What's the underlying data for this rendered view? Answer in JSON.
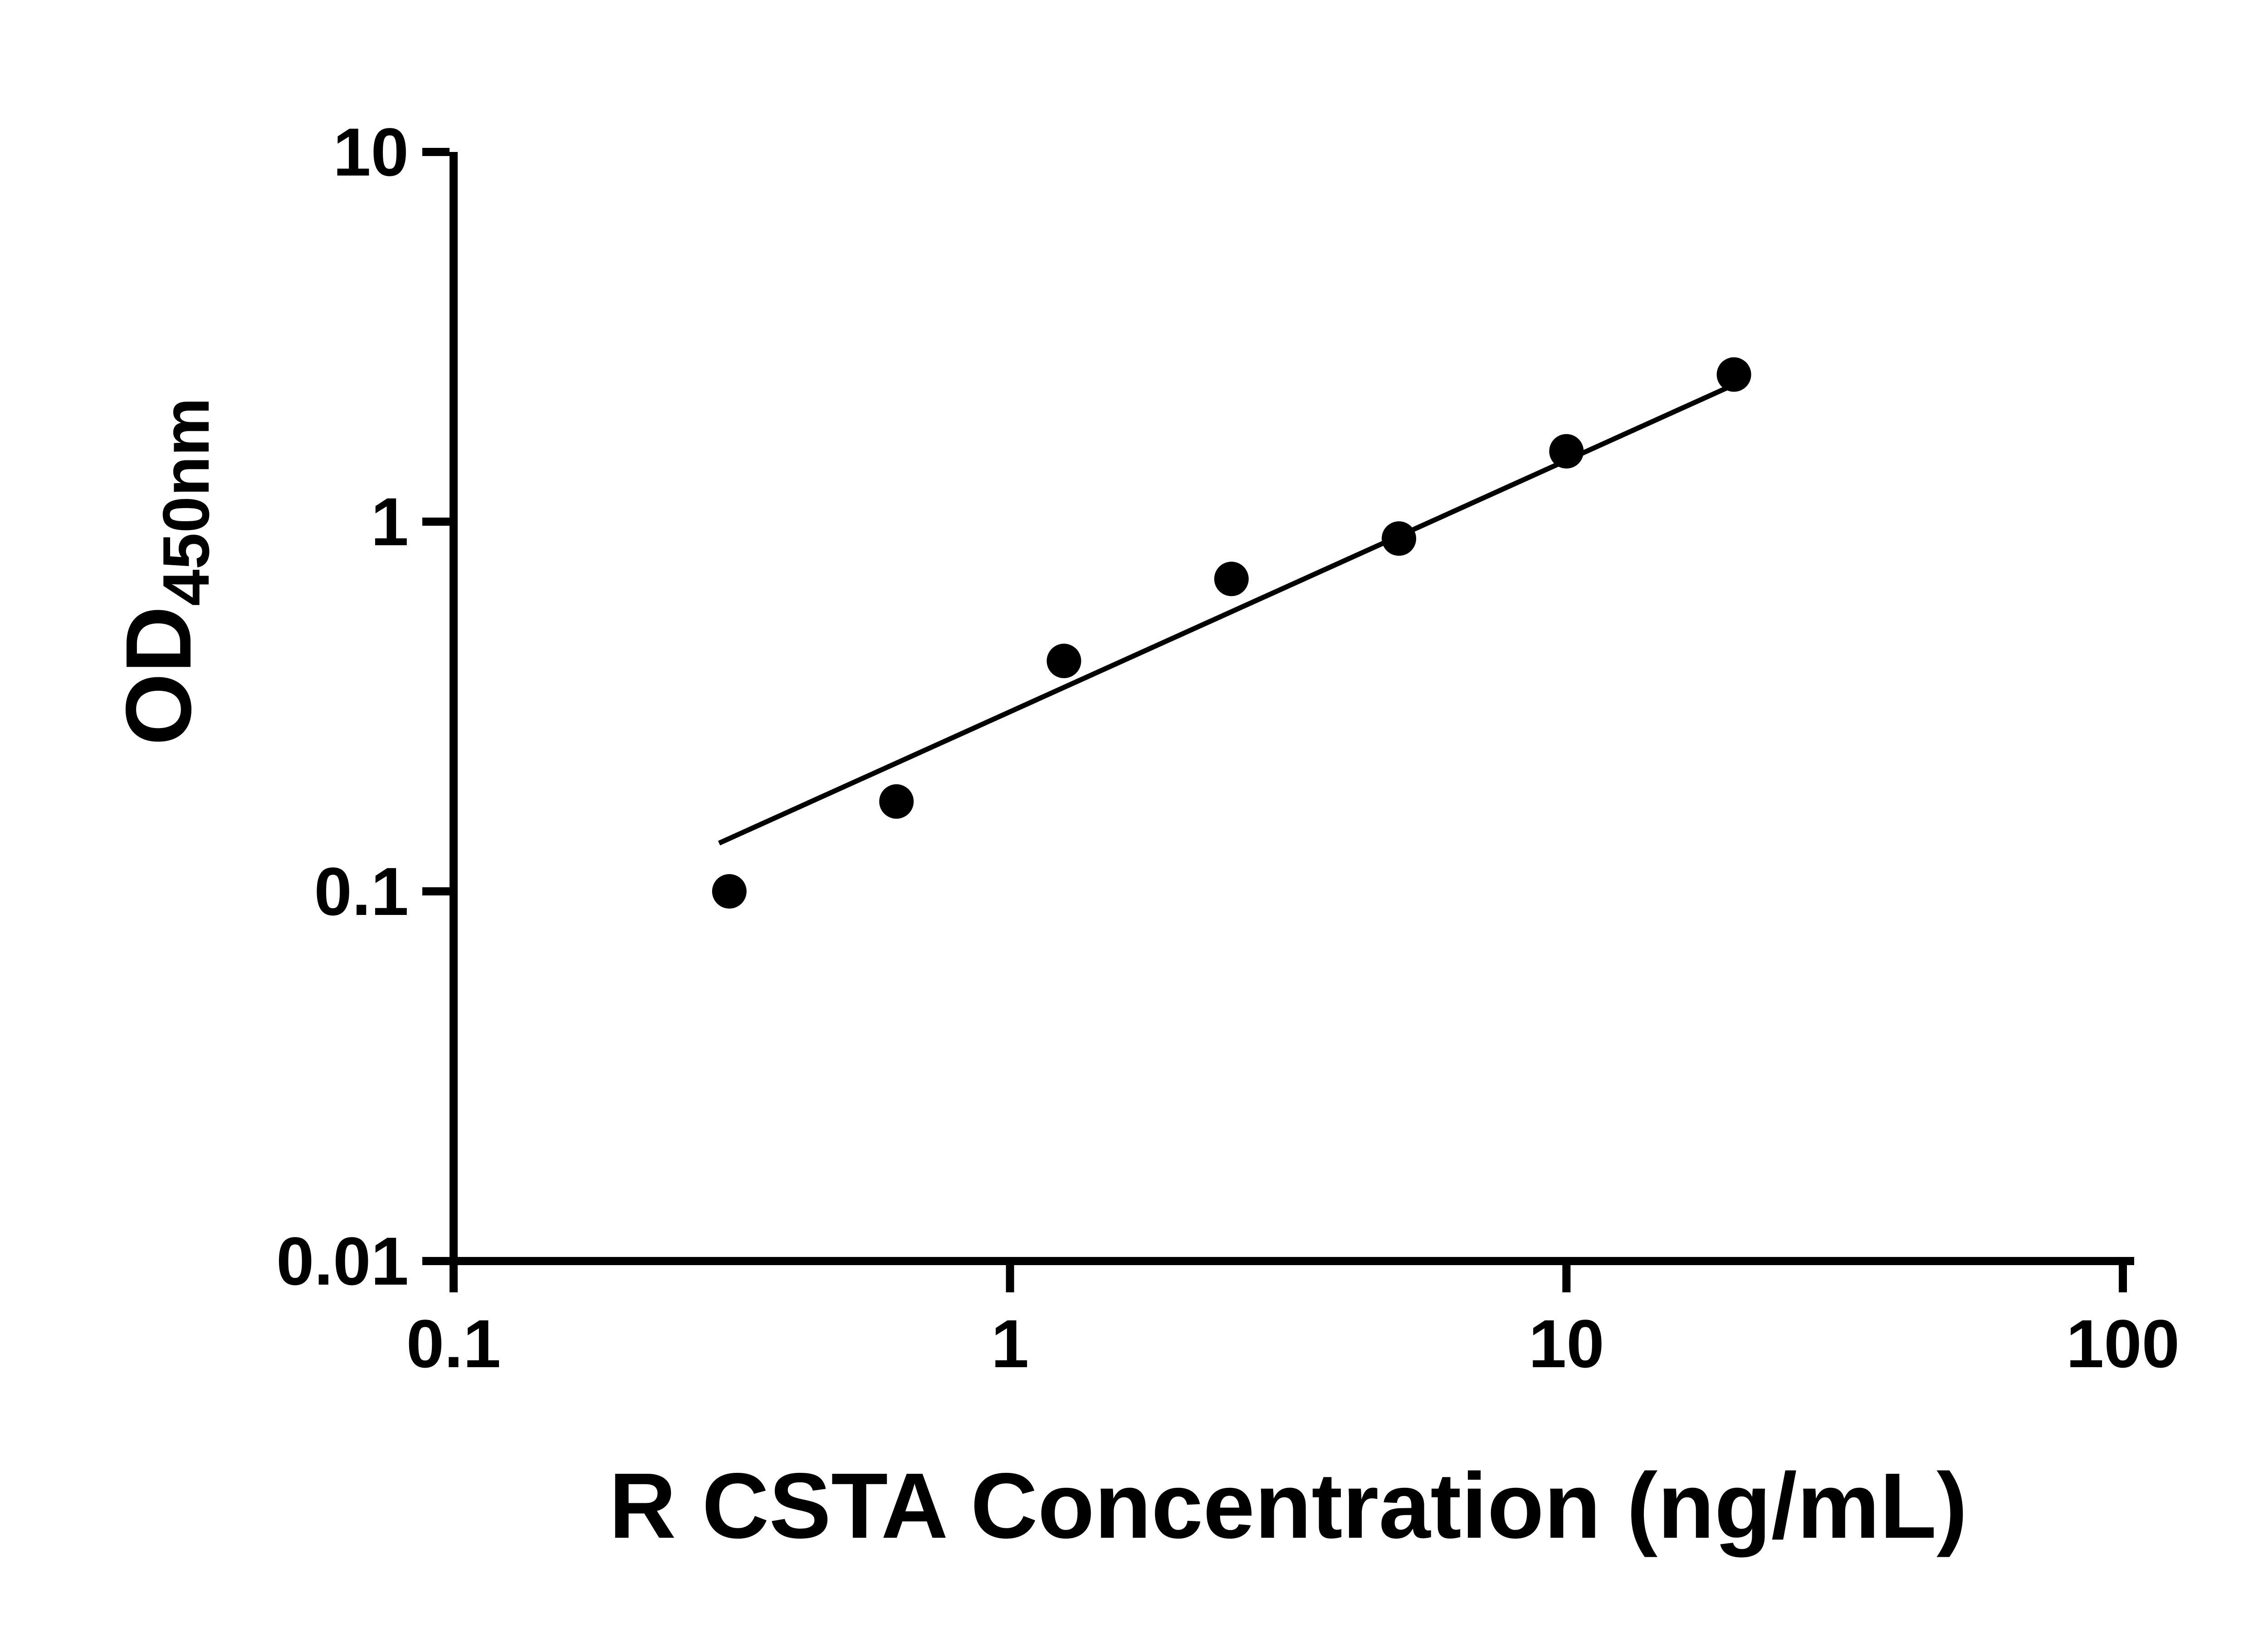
{
  "figure": {
    "background_color": "#ffffff",
    "foreground_color": "#000000"
  },
  "chart_data": {
    "type": "scatter",
    "subtype": "log-log ELISA standard curve with straight-line fit",
    "title": "",
    "xlabel": "R CSTA Concentration (ng/mL)",
    "ylabel_main": "OD",
    "ylabel_sub": "450nm",
    "x_scale": "log10",
    "y_scale": "log10",
    "xlim": [
      0.1,
      100
    ],
    "ylim": [
      0.01,
      10
    ],
    "x_ticks": [
      0.1,
      1,
      10,
      100
    ],
    "x_tick_labels": [
      "0.1",
      "1",
      "10",
      "100"
    ],
    "y_ticks": [
      10,
      1,
      0.1,
      0.01
    ],
    "y_tick_labels": [
      "10",
      "1",
      "0.1",
      "0.01"
    ],
    "grid": false,
    "legend": null,
    "series": [
      {
        "name": "standard-points",
        "marker": "filled-circle",
        "color": "#000000",
        "points": [
          {
            "x": 0.313,
            "y": 0.1
          },
          {
            "x": 0.625,
            "y": 0.175
          },
          {
            "x": 1.25,
            "y": 0.42
          },
          {
            "x": 2.5,
            "y": 0.7
          },
          {
            "x": 5,
            "y": 0.9
          },
          {
            "x": 10,
            "y": 1.55
          },
          {
            "x": 20,
            "y": 2.5
          }
        ]
      }
    ],
    "trendline": {
      "x1": 0.3,
      "y1": 0.135,
      "x2": 20.3,
      "y2": 2.37,
      "color": "#000000"
    }
  }
}
